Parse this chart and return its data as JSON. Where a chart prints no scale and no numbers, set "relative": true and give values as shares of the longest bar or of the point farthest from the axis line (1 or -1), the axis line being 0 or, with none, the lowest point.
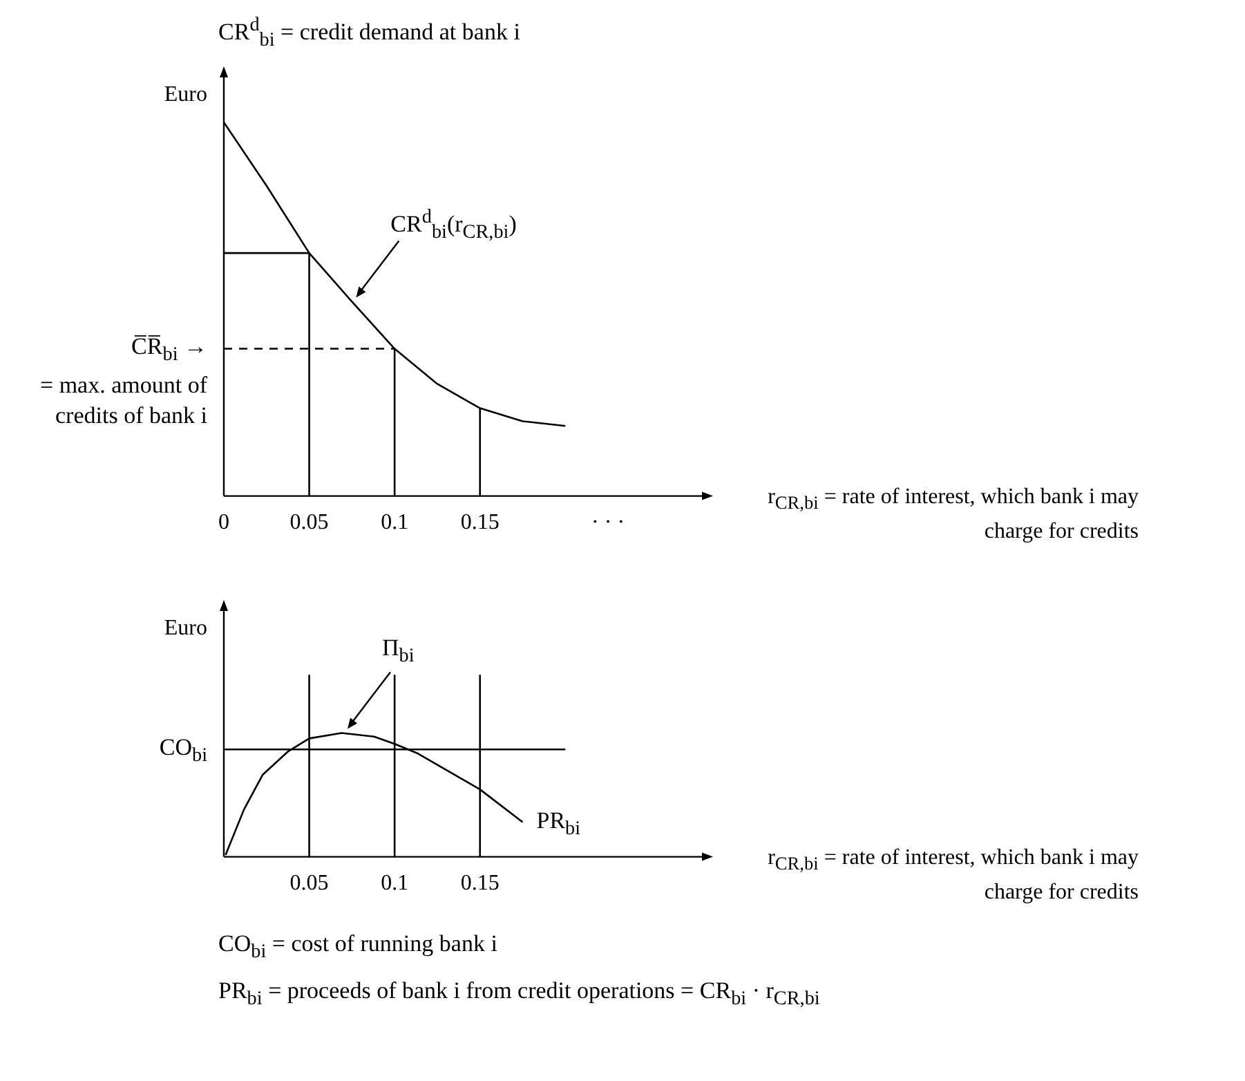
{
  "chart_data": [
    {
      "type": "line",
      "title": "CR$^{d}$$_{bi}$ = credit demand at bank i",
      "ylabel": "Euro",
      "xlabel": "r$_{CR,bi}$ = rate of interest, which bank i may charge for credits",
      "relative": true,
      "marker": "none",
      "xlim": [
        0,
        0.28
      ],
      "xticks": [
        0,
        0.05,
        0.1,
        0.15,
        {
          "value": 0.225,
          "label": "· · ·"
        }
      ],
      "series": [
        {
          "color": "#000000",
          "x": [
            0,
            0.025,
            0.05,
            0.075,
            0.1,
            0.125,
            0.15,
            0.175,
            0.2
          ],
          "values": [
            1,
            0.83,
            0.65,
            0.52,
            0.394,
            0.3,
            0.235,
            0.2,
            0.1875
          ]
        },
        {
          "color": "#000000",
          "x": [
            0,
            0.05
          ],
          "values": [
            0.65,
            0.65
          ]
        },
        {
          "color": "#000000",
          "x": [
            0.05,
            0.05
          ],
          "values": [
            0,
            0.65
          ]
        },
        {
          "color": "#000000",
          "x": [
            0.1,
            0.1
          ],
          "values": [
            0,
            0.394
          ]
        },
        {
          "color": "#000000",
          "x": [
            0.15,
            0.15
          ],
          "values": [
            0,
            0.235
          ]
        },
        {
          "color": "#000000",
          "x": [
            0,
            0.1
          ],
          "values": [
            0.394,
            0.394
          ],
          "line_style": "dashed"
        }
      ],
      "annotations": [
        {
          "text": "CR$^{d}$$_{bi}$(r$_{CR,bi}$)",
          "x": 0.075,
          "y": 0.52
        },
        {
          "text": "C̅R̅$_{bi}$ →\n= max. amount of credits of bank i",
          "x": 0,
          "y": 0.394
        }
      ]
    },
    {
      "type": "line",
      "ylabel": "Euro",
      "xlabel": "r$_{CR,bi}$ = rate of interest, which bank i may charge for credits",
      "relative": true,
      "marker": "none",
      "xlim": [
        0,
        0.28
      ],
      "xticks": [
        0.05,
        0.1,
        0.15
      ],
      "series": [
        {
          "color": "#000000",
          "x": [
            0.001,
            0.0118,
            0.0227,
            0.0378,
            0.05,
            0.069,
            0.088,
            0.1,
            0.113,
            0.15,
            0.175
          ],
          "values": [
            0.01,
            0.26,
            0.45,
            0.58,
            0.65,
            0.68,
            0.66,
            0.62,
            0.57,
            0.37,
            0.19
          ]
        },
        {
          "color": "#000000",
          "x": [
            0,
            0.2
          ],
          "values": [
            0.59,
            0.59
          ]
        },
        {
          "color": "#000000",
          "x": [
            0.05,
            0.05
          ],
          "values": [
            0,
            1
          ]
        },
        {
          "color": "#000000",
          "x": [
            0.1,
            0.1
          ],
          "values": [
            0,
            1
          ]
        },
        {
          "color": "#000000",
          "x": [
            0.15,
            0.15
          ],
          "values": [
            0,
            1
          ]
        }
      ],
      "annotations": [
        {
          "text": "Π$_{bi}$",
          "x": 0.07,
          "y": 0.68
        },
        {
          "text": "PR$_{bi}$",
          "x": 0.175,
          "y": 0.19
        },
        {
          "text": "CO$_{bi}$",
          "x": 0,
          "y": 0.59
        },
        "CO$_{bi}$ = cost of running bank i",
        "PR$_{bi}$ = proceeds of bank i from credit operations = CR$_{bi}$ · r$_{CR,bi}$"
      ]
    }
  ]
}
